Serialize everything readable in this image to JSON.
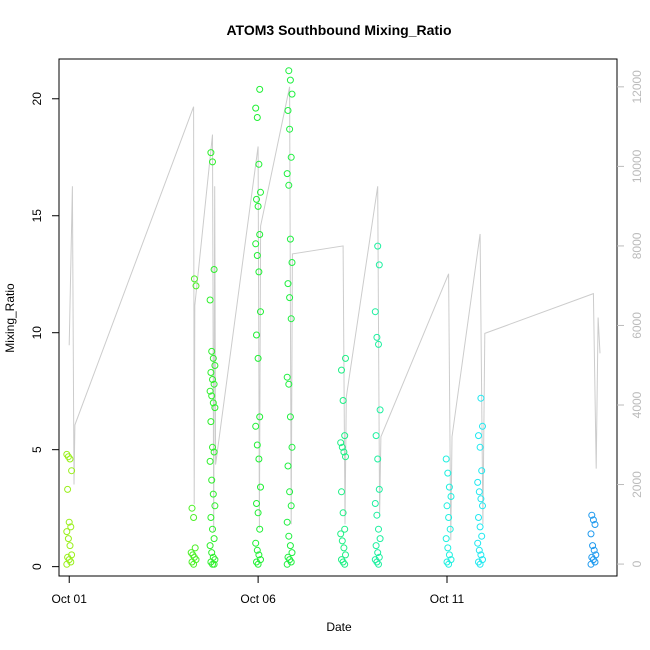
{
  "chart_data": {
    "type": "scatter",
    "title": "ATOM3 Southbound Mixing_Ratio",
    "xlabel": "Date",
    "ylabel": "Mixing_Ratio",
    "x_ticks": [
      "Oct 01",
      "Oct 06",
      "Oct 11"
    ],
    "y_ticks": [
      0,
      5,
      10,
      15,
      20
    ],
    "y2_ticks": [
      0,
      2000,
      4000,
      6000,
      8000,
      10000,
      12000
    ],
    "xlim": [
      "Sep 30 17:30",
      "Oct 15 12:00"
    ],
    "ylim": [
      -0.4,
      21.7
    ],
    "y2lim": [
      -300,
      12700
    ],
    "grid": false,
    "legend": "none",
    "colors": {
      "altitude_line": "#cccccc",
      "right_axis": "#bbbbbb",
      "axis": "#000000"
    },
    "points_encoding": "color gradient from yellow-green to blue along date",
    "series": [
      {
        "role": "mixing_ratio_points",
        "axis": "left",
        "clusters": [
          {
            "x": "Oct 01 00:00",
            "color": "#99f01a",
            "values": [
              4.8,
              4.7,
              4.6,
              4.1,
              3.3,
              1.9,
              1.7,
              1.5,
              1.2,
              0.9,
              0.5,
              0.4,
              0.3,
              0.2,
              0.1
            ]
          },
          {
            "x": "Oct 04 07:00",
            "color": "#4cf026",
            "values": [
              12.3,
              12.0,
              2.5,
              2.1,
              0.8,
              0.6,
              0.5,
              0.4,
              0.3,
              0.2,
              0.1
            ]
          },
          {
            "x": "Oct 04 19:00",
            "color": "#2ef02c",
            "values": [
              17.7,
              17.3,
              12.7,
              11.4,
              9.2,
              8.9,
              8.6,
              8.3,
              8.0,
              7.8,
              7.5,
              7.3,
              7.0,
              6.8,
              6.2,
              5.1,
              4.9,
              4.5,
              3.7,
              3.1,
              2.6,
              2.1,
              1.6,
              1.2,
              0.9,
              0.6,
              0.4,
              0.3,
              0.2,
              0.1,
              0.1
            ]
          },
          {
            "x": "Oct 06 00:00",
            "color": "#1ef033",
            "values": [
              20.4,
              19.6,
              19.2,
              17.2,
              16.0,
              15.7,
              15.4,
              14.2,
              13.8,
              13.3,
              12.6,
              10.9,
              9.9,
              8.9,
              6.4,
              6.0,
              5.2,
              4.6,
              3.4,
              2.7,
              2.3,
              1.6,
              1.0,
              0.7,
              0.5,
              0.3,
              0.2,
              0.1
            ]
          },
          {
            "x": "Oct 06 20:00",
            "color": "#1ff040",
            "values": [
              21.2,
              20.8,
              20.2,
              19.5,
              18.7,
              17.5,
              16.8,
              16.3,
              14.0,
              13.0,
              12.1,
              11.5,
              10.6,
              8.1,
              7.8,
              6.4,
              5.1,
              4.3,
              3.2,
              2.6,
              1.9,
              1.3,
              0.9,
              0.6,
              0.4,
              0.3,
              0.2,
              0.1
            ]
          },
          {
            "x": "Oct 08 06:00",
            "color": "#1ef085",
            "values": [
              8.9,
              8.4,
              7.1,
              5.6,
              5.3,
              5.1,
              4.9,
              4.7,
              3.2,
              2.3,
              1.6,
              1.4,
              1.1,
              0.8,
              0.5,
              0.3,
              0.2,
              0.1
            ]
          },
          {
            "x": "Oct 09 04:00",
            "color": "#1ef0a0",
            "values": [
              13.7,
              12.9,
              10.9,
              9.8,
              9.5,
              6.7,
              5.6,
              4.6,
              3.3,
              2.7,
              2.2,
              1.6,
              1.2,
              0.9,
              0.6,
              0.4,
              0.3,
              0.2,
              0.1
            ]
          },
          {
            "x": "Oct 11 01:00",
            "color": "#20f0e0",
            "values": [
              4.6,
              4.0,
              3.4,
              3.0,
              2.6,
              2.1,
              1.6,
              1.2,
              0.8,
              0.5,
              0.3,
              0.2,
              0.1
            ]
          },
          {
            "x": "Oct 11 21:00",
            "color": "#20e8f0",
            "values": [
              7.2,
              6.0,
              5.6,
              5.1,
              4.1,
              3.6,
              3.2,
              2.9,
              2.6,
              2.1,
              1.7,
              1.3,
              1.0,
              0.7,
              0.5,
              0.3,
              0.2,
              0.1
            ]
          },
          {
            "x": "Oct 14 21:00",
            "color": "#1f9aef",
            "values": [
              2.2,
              2.0,
              1.8,
              1.4,
              0.9,
              0.7,
              0.5,
              0.4,
              0.3,
              0.2,
              0.1
            ]
          }
        ]
      },
      {
        "role": "altitude_line",
        "axis": "right",
        "x": [
          "Oct 01 00:00",
          "Oct 01 02:00",
          "Oct 01 03:00",
          "Oct 01 03:36",
          "Oct 04 07:00",
          "Oct 04 07:24",
          "Oct 04 07:48",
          "Oct 04 19:00",
          "Oct 04 19:48",
          "Oct 04 20:24",
          "Oct 04 21:00",
          "Oct 06 00:00",
          "Oct 06 00:48",
          "Oct 06 01:36",
          "Oct 06 20:00",
          "Oct 06 21:00",
          "Oct 06 21:48",
          "Oct 08 06:00",
          "Oct 08 07:12",
          "Oct 08 08:00",
          "Oct 09 04:00",
          "Oct 09 05:12",
          "Oct 09 06:00",
          "Oct 11 01:00",
          "Oct 11 02:24",
          "Oct 11 03:12",
          "Oct 11 21:00",
          "Oct 11 22:48",
          "Oct 12 00:00",
          "Oct 14 21:00",
          "Oct 14 22:48",
          "Oct 15 00:00",
          "Oct 15 01:12"
        ],
        "values": [
          5500,
          9500,
          2000,
          3500,
          11500,
          1500,
          6500,
          10800,
          800,
          9500,
          2500,
          10500,
          900,
          8500,
          12000,
          1000,
          7800,
          8000,
          1000,
          4200,
          9500,
          1200,
          3200,
          7300,
          600,
          3200,
          8300,
          1000,
          5800,
          6800,
          2400,
          6200,
          5300
        ]
      }
    ]
  }
}
